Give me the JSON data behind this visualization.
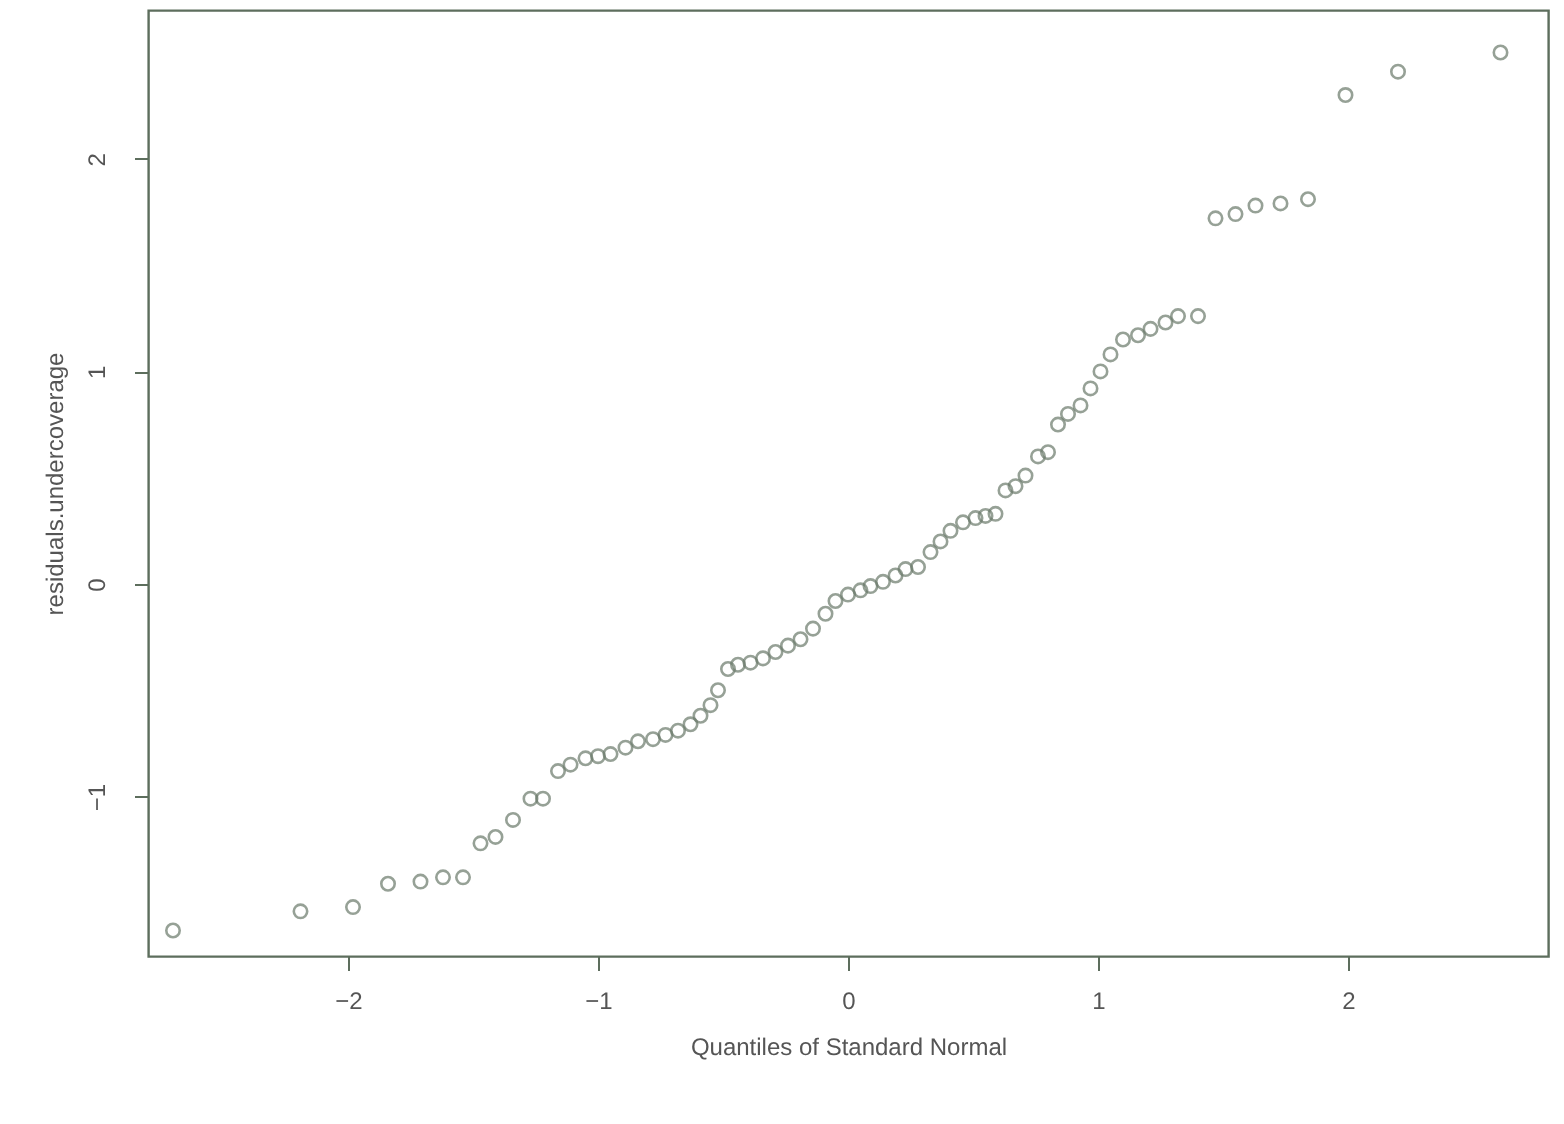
{
  "chart_data": {
    "type": "scatter",
    "xlabel": "Quantiles of Standard Normal",
    "ylabel": "residuals.undercoverage",
    "x": [
      -2.7,
      -2.19,
      -1.98,
      -1.84,
      -1.71,
      -1.62,
      -1.54,
      -1.47,
      -1.41,
      -1.34,
      -1.27,
      -1.22,
      -1.16,
      -1.11,
      -1.05,
      -1.0,
      -0.95,
      -0.89,
      -0.84,
      -0.78,
      -0.73,
      -0.68,
      -0.63,
      -0.59,
      -0.55,
      -0.52,
      -0.48,
      -0.44,
      -0.39,
      -0.34,
      -0.29,
      -0.24,
      -0.19,
      -0.14,
      -0.09,
      -0.05,
      0,
      0.05,
      0.09,
      0.14,
      0.19,
      0.23,
      0.28,
      0.33,
      0.37,
      0.41,
      0.46,
      0.51,
      0.55,
      0.59,
      0.63,
      0.67,
      0.71,
      0.76,
      0.8,
      0.84,
      0.88,
      0.93,
      0.97,
      1.01,
      1.05,
      1.1,
      1.16,
      1.21,
      1.27,
      1.32,
      1.4,
      1.47,
      1.55,
      1.63,
      1.73,
      1.84,
      1.99,
      2.2,
      2.61
    ],
    "series": [
      {
        "color": "#6b7a6b",
        "values": [
          -1.63,
          -1.54,
          -1.52,
          -1.41,
          -1.4,
          -1.38,
          -1.38,
          -1.22,
          -1.19,
          -1.11,
          -1.01,
          -1.01,
          -0.88,
          -0.85,
          -0.82,
          -0.81,
          -0.8,
          -0.77,
          -0.74,
          -0.73,
          -0.71,
          -0.69,
          -0.66,
          -0.62,
          -0.57,
          -0.5,
          -0.4,
          -0.38,
          -0.37,
          -0.35,
          -0.32,
          -0.29,
          -0.26,
          -0.21,
          -0.14,
          -0.08,
          -0.05,
          -0.03,
          -0.01,
          0.01,
          0.04,
          0.07,
          0.08,
          0.15,
          0.2,
          0.25,
          0.29,
          0.31,
          0.32,
          0.33,
          0.44,
          0.46,
          0.51,
          0.6,
          0.62,
          0.75,
          0.8,
          0.84,
          0.92,
          1.0,
          1.08,
          1.15,
          1.17,
          1.2,
          1.23,
          1.26,
          1.26,
          1.72,
          1.74,
          1.78,
          1.79,
          1.81,
          2.3,
          2.41,
          2.5
        ]
      }
    ],
    "xlim": [
      -2.8,
      2.8
    ],
    "ylim": [
      -1.75,
      2.7
    ],
    "xticks": [
      -2,
      -1,
      0,
      1,
      2
    ],
    "yticks": [
      -1,
      0,
      1,
      2
    ],
    "marker": "circle",
    "grid": false
  }
}
